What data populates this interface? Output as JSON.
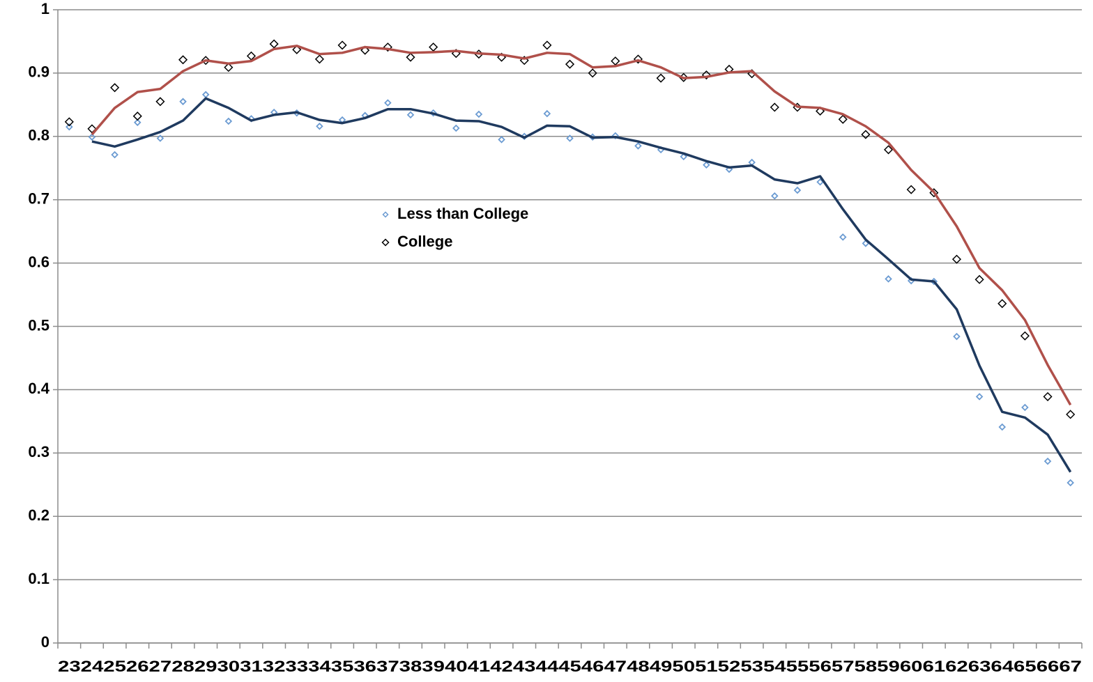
{
  "chart_data": {
    "type": "line",
    "categories": [
      "23",
      "24",
      "25",
      "26",
      "27",
      "28",
      "29",
      "30",
      "31",
      "32",
      "33",
      "34",
      "35",
      "36",
      "37",
      "38",
      "39",
      "40",
      "41",
      "42",
      "43",
      "44",
      "45",
      "46",
      "47",
      "48",
      "49",
      "50",
      "51",
      "52",
      "53",
      "54",
      "55",
      "56",
      "57",
      "58",
      "59",
      "60",
      "61",
      "62",
      "63",
      "64",
      "65",
      "66",
      "67"
    ],
    "ylim": [
      0,
      1
    ],
    "yticks": [
      0,
      0.1,
      0.2,
      0.3,
      0.4,
      0.5,
      0.6,
      0.7,
      0.8,
      0.9,
      1
    ],
    "grid": true,
    "series": [
      {
        "name": "Less than College",
        "color": "#6b9bd2",
        "style": "markers",
        "values": [
          0.815,
          0.799,
          0.771,
          0.822,
          0.797,
          0.855,
          0.866,
          0.824,
          0.828,
          0.838,
          0.837,
          0.816,
          0.826,
          0.833,
          0.853,
          0.834,
          0.837,
          0.813,
          0.835,
          0.795,
          0.8,
          0.836,
          0.797,
          0.799,
          0.801,
          0.785,
          0.779,
          0.768,
          0.755,
          0.748,
          0.759,
          0.706,
          0.715,
          0.728,
          0.641,
          0.631,
          0.575,
          0.572,
          0.571,
          0.484,
          0.389,
          0.341,
          0.372,
          0.287,
          0.253
        ]
      },
      {
        "name": "College",
        "color": "#000000",
        "style": "markers",
        "values": [
          0.823,
          0.812,
          0.877,
          0.832,
          0.855,
          0.921,
          0.92,
          0.909,
          0.927,
          0.946,
          0.937,
          0.922,
          0.944,
          0.936,
          0.941,
          0.925,
          0.941,
          0.931,
          0.93,
          0.925,
          0.92,
          0.944,
          0.914,
          0.9,
          0.919,
          0.922,
          0.892,
          0.893,
          0.897,
          0.906,
          0.899,
          0.846,
          0.846,
          0.84,
          0.827,
          0.803,
          0.779,
          0.716,
          0.711,
          0.606,
          0.574,
          0.536,
          0.485,
          0.389,
          0.361
        ]
      },
      {
        "color": "#1f3a5f",
        "style": "line",
        "values": [
          null,
          0.792,
          0.784,
          0.795,
          0.807,
          0.825,
          0.86,
          0.845,
          0.825,
          0.834,
          0.838,
          0.826,
          0.821,
          0.829,
          0.843,
          0.843,
          0.836,
          0.825,
          0.824,
          0.815,
          0.798,
          0.817,
          0.816,
          0.798,
          0.799,
          0.792,
          0.782,
          0.773,
          0.761,
          0.751,
          0.754,
          0.732,
          0.726,
          0.737,
          0.685,
          0.637,
          0.606,
          0.574,
          0.571,
          0.527,
          0.438,
          0.365,
          0.356,
          0.329,
          0.27
        ]
      },
      {
        "color": "#b0504a",
        "style": "line",
        "values": [
          null,
          0.803,
          0.845,
          0.87,
          0.875,
          0.903,
          0.92,
          0.915,
          0.919,
          0.938,
          0.943,
          0.93,
          0.932,
          0.941,
          0.938,
          0.932,
          0.933,
          0.935,
          0.931,
          0.929,
          0.923,
          0.932,
          0.93,
          0.909,
          0.911,
          0.92,
          0.909,
          0.892,
          0.894,
          0.901,
          0.903,
          0.871,
          0.847,
          0.845,
          0.835,
          0.816,
          0.79,
          0.747,
          0.712,
          0.658,
          0.592,
          0.557,
          0.51,
          0.439,
          0.376
        ]
      }
    ]
  }
}
